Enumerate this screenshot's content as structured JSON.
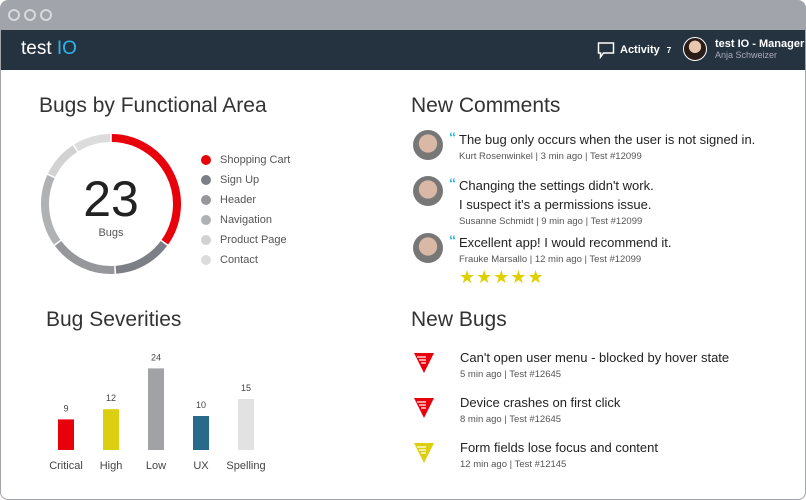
{
  "window": {
    "controls": [
      "close",
      "minimize",
      "maximize"
    ]
  },
  "nav": {
    "logo_a": "test ",
    "logo_b": "IO",
    "activity_label": "Activity",
    "activity_count": "7",
    "user_role": "test IO - Manager",
    "user_name": "Anja Schweizer"
  },
  "functional": {
    "title": "Bugs by Functional Area",
    "total": "23",
    "total_label": "Bugs",
    "areas": [
      {
        "label": "Shopping Cart",
        "color": "#e8000b",
        "share": 0.35
      },
      {
        "label": "Sign Up",
        "color": "#7c7f85",
        "share": 0.14
      },
      {
        "label": "Header",
        "color": "#95979b",
        "share": 0.16
      },
      {
        "label": "Navigation",
        "color": "#b0b1b3",
        "share": 0.17
      },
      {
        "label": "Product Page",
        "color": "#d2d2d2",
        "share": 0.09
      },
      {
        "label": "Contact",
        "color": "#dcdcdc",
        "share": 0.09
      }
    ]
  },
  "chart_data": {
    "type": "bar",
    "title": "Bug Severities",
    "categories": [
      "Critical",
      "High",
      "Low",
      "UX",
      "Spelling"
    ],
    "values": [
      9,
      12,
      24,
      10,
      15
    ],
    "colors": [
      "#e8000b",
      "#dccf10",
      "#a0a2a6",
      "#29698a",
      "#e2e2e2"
    ]
  },
  "comments": {
    "title": "New Comments",
    "items": [
      {
        "text": "The bug only occurs when the user is not signed in.",
        "meta": "Kurt Rosenwinkel | 3 min ago | Test #12099"
      },
      {
        "text": "Changing the settings didn't work.",
        "text2": "I suspect it's a permissions issue.",
        "meta": "Susanne Schmidt | 9 min ago | Test #12099"
      },
      {
        "text": "Excellent app! I would recommend it.",
        "meta": "Frauke Marsallo | 12 min ago | Test #12099",
        "rating": 5,
        "stars": "★★★★★"
      }
    ]
  },
  "bugs": {
    "title": "New Bugs",
    "items": [
      {
        "title": "Can't open user menu - blocked by hover state",
        "meta": "5 min ago | Test #12645",
        "severity_color": "#e8000b"
      },
      {
        "title": "Device crashes on first click",
        "meta": "8 min ago | Test #12645",
        "severity_color": "#e8000b"
      },
      {
        "title": "Form fields lose focus and content",
        "meta": "12 min ago | Test #12145",
        "severity_color": "#dccf10"
      }
    ]
  }
}
